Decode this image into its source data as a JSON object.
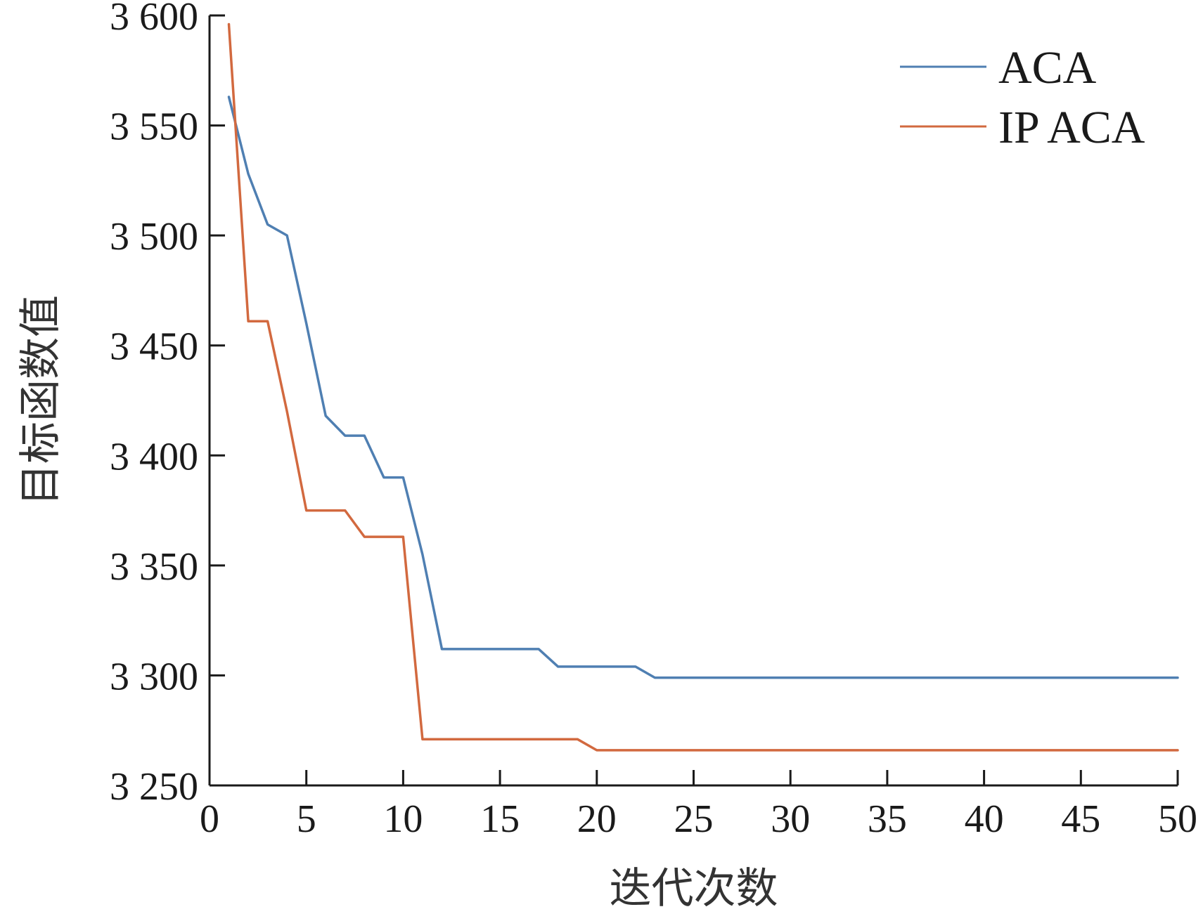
{
  "chart_data": {
    "type": "line",
    "title": "",
    "xlabel": "迭代次数",
    "ylabel": "目标函数值",
    "xlim": [
      0,
      50
    ],
    "ylim": [
      3250,
      3600
    ],
    "x_ticks": [
      0,
      5,
      10,
      15,
      20,
      25,
      30,
      35,
      40,
      45,
      50
    ],
    "x_tick_labels": [
      "0",
      "5",
      "10",
      "15",
      "20",
      "25",
      "30",
      "35",
      "40",
      "45",
      "50"
    ],
    "y_ticks": [
      3250,
      3300,
      3350,
      3400,
      3450,
      3500,
      3550,
      3600
    ],
    "y_tick_labels": [
      "3 250",
      "3 300",
      "3 350",
      "3 400",
      "3 450",
      "3 500",
      "3 550",
      "3 600"
    ],
    "grid": false,
    "legend_position": "top-right",
    "series": [
      {
        "name": "ACA",
        "color": "#4f7fb2",
        "x": [
          1,
          2,
          3,
          4,
          5,
          6,
          7,
          8,
          9,
          10,
          11,
          12,
          13,
          14,
          15,
          16,
          17,
          18,
          19,
          20,
          21,
          22,
          23,
          24,
          25,
          26,
          27,
          28,
          29,
          30,
          31,
          32,
          33,
          34,
          35,
          36,
          37,
          38,
          39,
          40,
          41,
          42,
          43,
          44,
          45,
          46,
          47,
          48,
          49,
          50
        ],
        "y": [
          3563,
          3528,
          3505,
          3500,
          3460,
          3418,
          3409,
          3409,
          3390,
          3390,
          3355,
          3312,
          3312,
          3312,
          3312,
          3312,
          3312,
          3304,
          3304,
          3304,
          3304,
          3304,
          3299,
          3299,
          3299,
          3299,
          3299,
          3299,
          3299,
          3299,
          3299,
          3299,
          3299,
          3299,
          3299,
          3299,
          3299,
          3299,
          3299,
          3299,
          3299,
          3299,
          3299,
          3299,
          3299,
          3299,
          3299,
          3299,
          3299,
          3299
        ]
      },
      {
        "name": "IP ACA",
        "color": "#d2693f",
        "x": [
          1,
          2,
          3,
          4,
          5,
          6,
          7,
          8,
          9,
          10,
          11,
          12,
          13,
          14,
          15,
          16,
          17,
          18,
          19,
          20,
          21,
          22,
          23,
          24,
          25,
          26,
          27,
          28,
          29,
          30,
          31,
          32,
          33,
          34,
          35,
          36,
          37,
          38,
          39,
          40,
          41,
          42,
          43,
          44,
          45,
          46,
          47,
          48,
          49,
          50
        ],
        "y": [
          3596,
          3461,
          3461,
          3420,
          3375,
          3375,
          3375,
          3363,
          3363,
          3363,
          3271,
          3271,
          3271,
          3271,
          3271,
          3271,
          3271,
          3271,
          3271,
          3266,
          3266,
          3266,
          3266,
          3266,
          3266,
          3266,
          3266,
          3266,
          3266,
          3266,
          3266,
          3266,
          3266,
          3266,
          3266,
          3266,
          3266,
          3266,
          3266,
          3266,
          3266,
          3266,
          3266,
          3266,
          3266,
          3266,
          3266,
          3266,
          3266,
          3266
        ]
      }
    ]
  }
}
